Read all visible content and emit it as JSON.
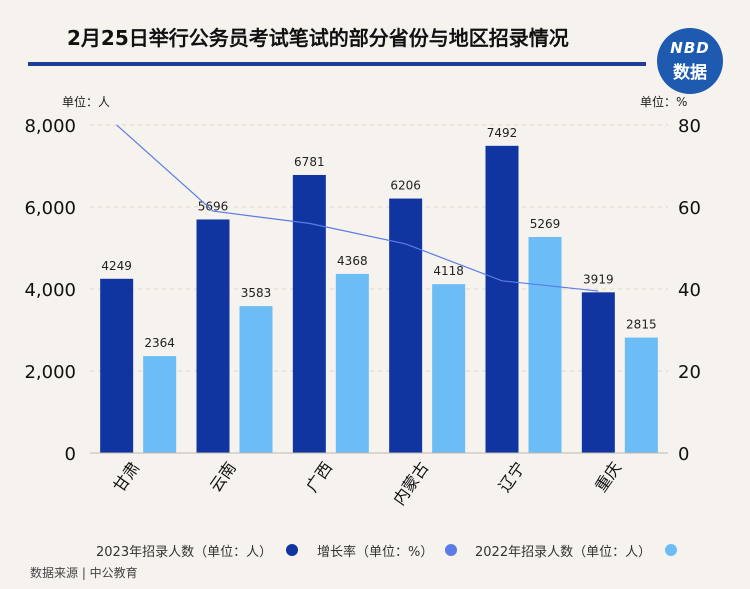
{
  "header": {
    "title": "2月25日举行公务员考试笔试的部分省份与地区招录情况",
    "logo_top": "NBD",
    "logo_bottom": "数据"
  },
  "units": {
    "left": "单位：人",
    "right": "单位：%"
  },
  "footer": {
    "source": "数据来源 | 中公教育"
  },
  "colors": {
    "series_2023": "#1035a0",
    "series_growth": "#5b7ce6",
    "series_2022": "#6cbcf5",
    "title_rule": "#1f3e97"
  },
  "chart_data": {
    "type": "bar",
    "categories": [
      "甘肃",
      "云南",
      "广西",
      "内蒙古",
      "辽宁",
      "重庆"
    ],
    "series": [
      {
        "name": "2023年招录人数（单位：人）",
        "type": "bar",
        "axis": "left",
        "values": [
          4249,
          5696,
          6781,
          6206,
          7492,
          3919
        ],
        "labels": [
          "4249",
          "5696",
          "6781",
          "6206",
          "7492",
          "3919"
        ]
      },
      {
        "name": "增长率（单位：%）",
        "type": "line",
        "axis": "right",
        "values": [
          80,
          59,
          56,
          51,
          42,
          39.5
        ]
      },
      {
        "name": "2022年招录人数（单位：人）",
        "type": "bar",
        "axis": "left",
        "values": [
          2364,
          3583,
          4368,
          4118,
          5269,
          2815
        ],
        "labels": [
          "2364",
          "3583",
          "4368",
          "4118",
          "5269",
          "2815"
        ]
      }
    ],
    "y_left": {
      "min": 0,
      "max": 8000,
      "ticks": [
        "0",
        "2,000",
        "4,000",
        "6,000",
        "8,000"
      ],
      "tick_values": [
        0,
        2000,
        4000,
        6000,
        8000
      ]
    },
    "y_right": {
      "min": 0,
      "max": 80,
      "ticks": [
        "0",
        "20",
        "40",
        "60",
        "80"
      ],
      "tick_values": [
        0,
        20,
        40,
        60,
        80
      ]
    },
    "grid": true,
    "legend_position": "bottom"
  }
}
